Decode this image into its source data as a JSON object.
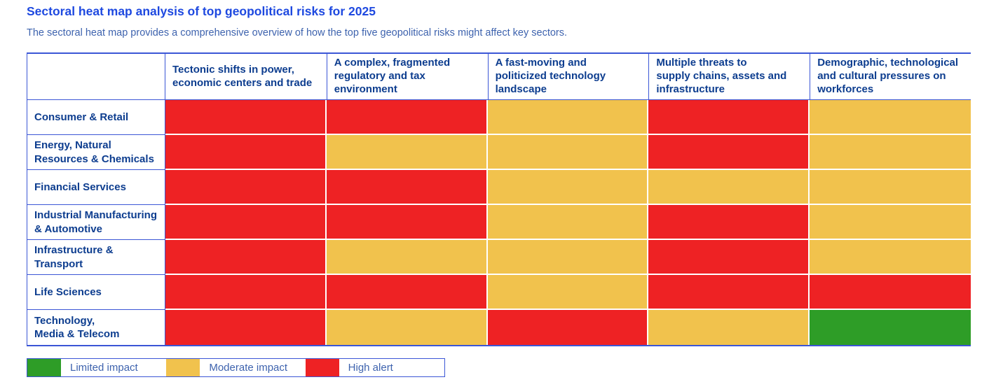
{
  "page": {
    "title": "Sectoral heat map analysis of top geopolitical risks for 2025",
    "subtitle": "The sectoral heat map provides a comprehensive overview of how the top five geopolitical risks might affect key sectors."
  },
  "colors": {
    "title_blue": "#1E49E0",
    "subtitle_blue": "#3E63AE",
    "header_blue": "#0D3D8F",
    "border_blue": "#3B56D6",
    "high": "#EE2224",
    "moderate": "#F1C24D",
    "limited": "#2E9D27"
  },
  "chart_data": {
    "type": "heatmap",
    "title": "Sectoral heat map analysis of top geopolitical risks for 2025",
    "subtitle": "The sectoral heat map provides a comprehensive overview of how the top five geopolitical risks might affect key sectors.",
    "x_categories": [
      "Tectonic shifts in power,\neconomic centers and trade",
      "A complex, fragmented\nregulatory and tax\nenvironment",
      "A fast-moving and\npoliticized technology\nlandscape",
      "Multiple threats to\nsupply chains, assets and\ninfrastructure",
      "Demographic, technological\nand cultural pressures on\nworkforces"
    ],
    "y_categories": [
      "Consumer & Retail",
      "Energy, Natural\nResources & Chemicals",
      "Financial Services",
      "Industrial Manufacturing\n& Automotive",
      "Infrastructure &\nTransport",
      "Life Sciences",
      "Technology,\nMedia & Telecom"
    ],
    "values": [
      [
        "high",
        "high",
        "moderate",
        "high",
        "moderate"
      ],
      [
        "high",
        "moderate",
        "moderate",
        "high",
        "moderate"
      ],
      [
        "high",
        "high",
        "moderate",
        "moderate",
        "moderate"
      ],
      [
        "high",
        "high",
        "moderate",
        "high",
        "moderate"
      ],
      [
        "high",
        "moderate",
        "moderate",
        "high",
        "moderate"
      ],
      [
        "high",
        "high",
        "moderate",
        "high",
        "high"
      ],
      [
        "high",
        "moderate",
        "high",
        "moderate",
        "limited"
      ]
    ],
    "value_scale": [
      "limited",
      "moderate",
      "high"
    ],
    "legend_position": "bottom-left",
    "grid": false
  },
  "legend": {
    "items": [
      {
        "key": "limited",
        "label": "Limited impact",
        "color": "#2E9D27"
      },
      {
        "key": "moderate",
        "label": "Moderate impact",
        "color": "#F1C24D"
      },
      {
        "key": "high",
        "label": "High alert",
        "color": "#EE2224"
      }
    ]
  }
}
